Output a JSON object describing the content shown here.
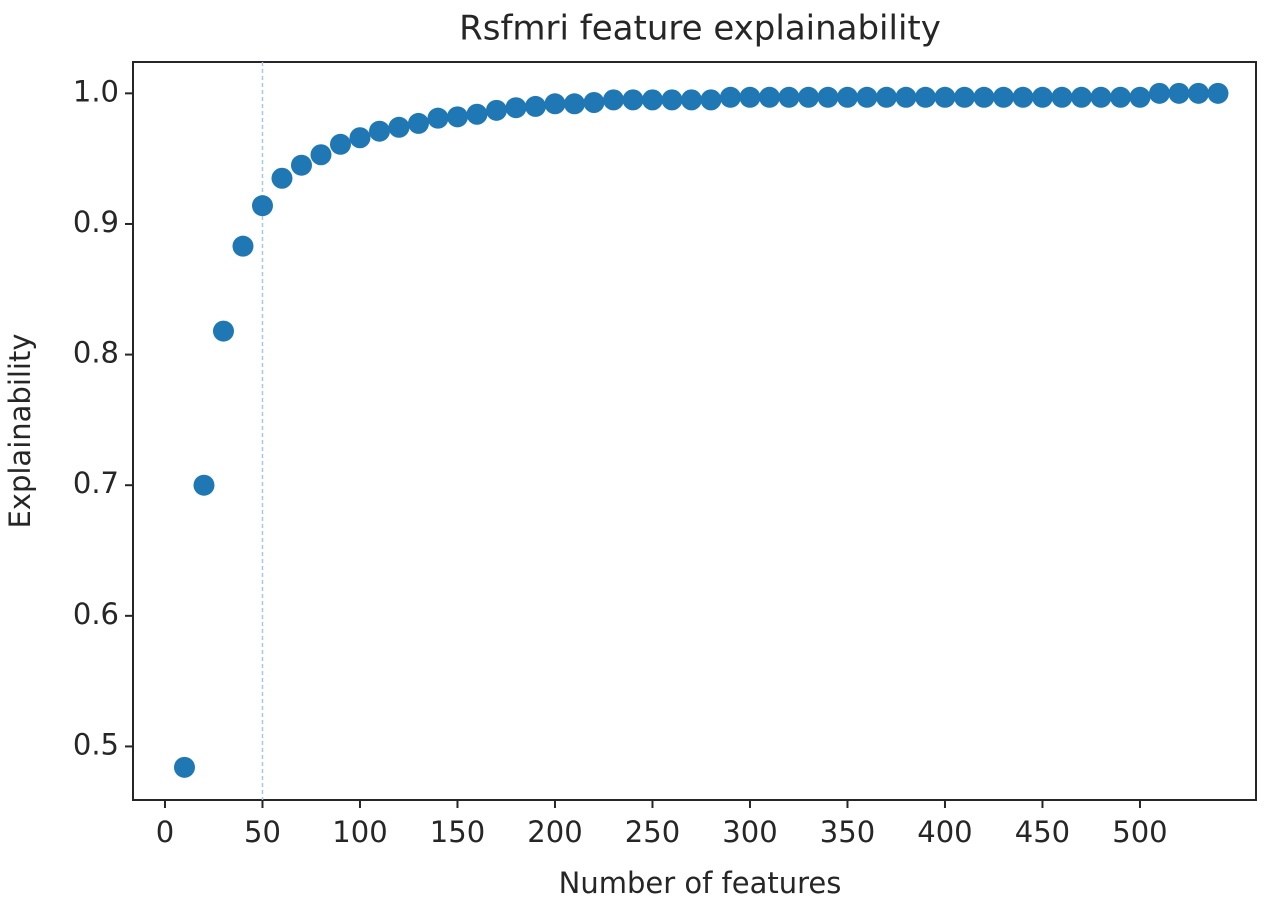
{
  "chart_data": {
    "type": "scatter",
    "title": "Rsfmri feature explainability",
    "x_label": "Number of features",
    "y_label": "Explainability",
    "color": "#1f77b4",
    "x": [
      10,
      20,
      30,
      40,
      50,
      60,
      70,
      80,
      90,
      100,
      110,
      120,
      130,
      140,
      150,
      160,
      170,
      180,
      190,
      200,
      210,
      220,
      230,
      240,
      250,
      260,
      270,
      280,
      290,
      300,
      310,
      320,
      330,
      340,
      350,
      360,
      370,
      380,
      390,
      400,
      410,
      420,
      430,
      440,
      450,
      460,
      470,
      480,
      490,
      500,
      510,
      520,
      530,
      540
    ],
    "values": [
      0.484,
      0.7,
      0.818,
      0.883,
      0.914,
      0.935,
      0.945,
      0.953,
      0.961,
      0.966,
      0.971,
      0.974,
      0.977,
      0.981,
      0.982,
      0.984,
      0.987,
      0.989,
      0.99,
      0.992,
      0.992,
      0.993,
      0.995,
      0.995,
      0.995,
      0.995,
      0.995,
      0.995,
      0.997,
      0.997,
      0.997,
      0.997,
      0.997,
      0.997,
      0.997,
      0.997,
      0.997,
      0.997,
      0.997,
      0.997,
      0.997,
      0.997,
      0.997,
      0.997,
      0.997,
      0.997,
      0.997,
      0.997,
      0.997,
      0.997,
      1.0,
      1.0,
      1.0,
      1.0
    ],
    "vline": 50,
    "vline_color": "#a6c8e6",
    "xlim": [
      -16.4,
      559.5
    ],
    "xticks": [
      0,
      50,
      100,
      150,
      200,
      250,
      300,
      350,
      400,
      450,
      500
    ],
    "ylim": [
      0.459,
      1.024
    ],
    "yticks": [
      0.5,
      0.6,
      0.7,
      0.8,
      0.9,
      {
        "value": 1,
        "label": "1.0"
      }
    ]
  }
}
